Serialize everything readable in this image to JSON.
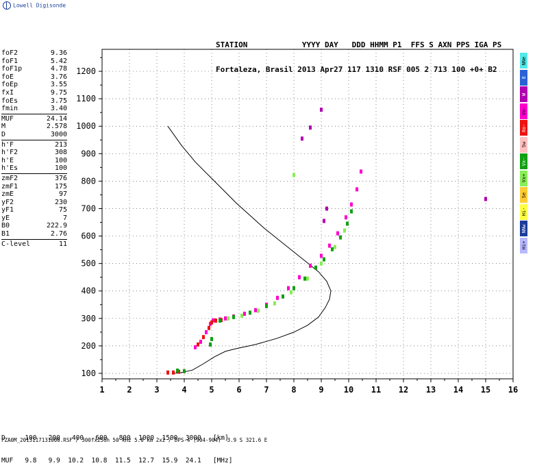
{
  "logo": {
    "text": "Lowell Digisonde"
  },
  "header": {
    "line1": "STATION            YYYY DAY   DDD HHMM P1  FFS S AXN PPS IGA PS",
    "line2": "Fortaleza, Brasil 2013 Apr27 117 1310 RSF 005 2 713 100 +0+ B2"
  },
  "parameters": [
    [
      {
        "name": "foF2",
        "value": "9.36"
      },
      {
        "name": "foF1",
        "value": "5.42"
      },
      {
        "name": "foF1p",
        "value": "4.78"
      },
      {
        "name": "foE",
        "value": "3.76"
      },
      {
        "name": "foEp",
        "value": "3.55"
      },
      {
        "name": "fxI",
        "value": "9.75"
      },
      {
        "name": "foEs",
        "value": "3.75"
      },
      {
        "name": "fmin",
        "value": "3.40"
      }
    ],
    [
      {
        "name": "MUF",
        "value": "24.14"
      },
      {
        "name": "M",
        "value": "2.578"
      },
      {
        "name": "D",
        "value": "3000"
      }
    ],
    [
      {
        "name": "h'F",
        "value": "213"
      },
      {
        "name": "h'F2",
        "value": "308"
      },
      {
        "name": "h'E",
        "value": "100"
      },
      {
        "name": "h'Es",
        "value": "100"
      }
    ],
    [
      {
        "name": "zmF2",
        "value": "376"
      },
      {
        "name": "zmF1",
        "value": "175"
      },
      {
        "name": "zmE",
        "value": "97"
      },
      {
        "name": "yF2",
        "value": "230"
      },
      {
        "name": "yF1",
        "value": "75"
      },
      {
        "name": "yE",
        "value": "7"
      },
      {
        "name": "B0",
        "value": "222.9"
      },
      {
        "name": "B1",
        "value": "2.76"
      }
    ],
    [
      {
        "name": "C-level",
        "value": "11"
      }
    ]
  ],
  "legend": [
    {
      "label": "NNe",
      "color": "#55e8e8"
    },
    {
      "label": "E",
      "color": "#2a62d6"
    },
    {
      "label": "W",
      "color": "#b000b0"
    },
    {
      "label": "Vo-",
      "color": "#ff00cc"
    },
    {
      "label": "Xo-",
      "color": "#ee1111"
    },
    {
      "label": "Sw",
      "color": "#ffc0c0"
    },
    {
      "label": "Vx-",
      "color": "#11a011"
    },
    {
      "label": "Vx+",
      "color": "#88ee55"
    },
    {
      "label": "Se",
      "color": "#ffcc33"
    },
    {
      "label": "Hi-",
      "color": "#ffff44"
    },
    {
      "label": "NNw",
      "color": "#1a3c9a"
    },
    {
      "label": "Hi+",
      "color": "#b8b8ff"
    }
  ],
  "chart_data": {
    "type": "scatter",
    "xlabel": "",
    "ylabel": "",
    "xlim": [
      1,
      16
    ],
    "ylim": [
      80,
      1280
    ],
    "xticks": [
      1,
      2,
      3,
      4,
      5,
      6,
      7,
      8,
      9,
      10,
      11,
      12,
      13,
      14,
      15,
      16
    ],
    "yticks": [
      100,
      200,
      300,
      400,
      500,
      600,
      700,
      800,
      900,
      1000,
      1100,
      1200
    ],
    "grid": true,
    "series": [
      {
        "color": "#ff00cc",
        "points": [
          [
            4.4,
            195
          ],
          [
            4.6,
            215
          ],
          [
            4.8,
            250
          ],
          [
            4.95,
            280
          ],
          [
            5.05,
            293
          ],
          [
            5.3,
            296
          ],
          [
            5.5,
            300
          ],
          [
            5.8,
            307
          ],
          [
            6.2,
            317
          ],
          [
            6.6,
            330
          ],
          [
            7.0,
            350
          ],
          [
            7.4,
            375
          ],
          [
            7.8,
            410
          ],
          [
            8.2,
            450
          ],
          [
            8.6,
            492
          ],
          [
            9.0,
            528
          ],
          [
            9.3,
            565
          ],
          [
            9.6,
            610
          ],
          [
            9.9,
            668
          ],
          [
            10.1,
            715
          ],
          [
            10.3,
            770
          ],
          [
            10.45,
            835
          ]
        ]
      },
      {
        "color": "#ee1111",
        "points": [
          [
            4.5,
            205
          ],
          [
            4.7,
            232
          ],
          [
            4.9,
            265
          ],
          [
            5.0,
            285
          ],
          [
            5.15,
            292
          ],
          [
            5.35,
            294
          ],
          [
            3.4,
            103
          ],
          [
            3.6,
            103
          ],
          [
            3.8,
            106
          ]
        ]
      },
      {
        "color": "#11a011",
        "points": [
          [
            4.95,
            205
          ],
          [
            5.0,
            225
          ],
          [
            5.3,
            292
          ],
          [
            5.8,
            305
          ],
          [
            6.4,
            321
          ],
          [
            7.0,
            345
          ],
          [
            7.6,
            380
          ],
          [
            8.0,
            410
          ],
          [
            8.4,
            445
          ],
          [
            8.8,
            485
          ],
          [
            9.1,
            515
          ],
          [
            9.4,
            552
          ],
          [
            9.7,
            595
          ],
          [
            9.95,
            645
          ],
          [
            10.1,
            690
          ],
          [
            4.0,
            108
          ],
          [
            3.75,
            110
          ]
        ]
      },
      {
        "color": "#88ee55",
        "points": [
          [
            5.6,
            300
          ],
          [
            6.1,
            310
          ],
          [
            6.7,
            328
          ],
          [
            7.3,
            355
          ],
          [
            7.9,
            395
          ],
          [
            8.5,
            445
          ],
          [
            9.0,
            500
          ],
          [
            9.5,
            560
          ],
          [
            9.85,
            620
          ],
          [
            8.0,
            822
          ]
        ]
      },
      {
        "color": "#b000b0",
        "points": [
          [
            8.3,
            955
          ],
          [
            8.6,
            995
          ],
          [
            9.0,
            1060
          ],
          [
            9.2,
            700
          ],
          [
            9.1,
            655
          ],
          [
            15.0,
            735
          ]
        ]
      }
    ],
    "profile": [
      [
        3.4,
        1000
      ],
      [
        3.9,
        930
      ],
      [
        4.4,
        870
      ],
      [
        4.9,
        820
      ],
      [
        5.4,
        770
      ],
      [
        5.9,
        720
      ],
      [
        6.4,
        675
      ],
      [
        6.9,
        630
      ],
      [
        7.4,
        590
      ],
      [
        7.9,
        550
      ],
      [
        8.4,
        510
      ],
      [
        8.9,
        470
      ],
      [
        9.2,
        435
      ],
      [
        9.35,
        400
      ],
      [
        9.3,
        370
      ],
      [
        9.15,
        340
      ],
      [
        8.9,
        305
      ],
      [
        8.5,
        275
      ],
      [
        8.0,
        250
      ],
      [
        7.4,
        228
      ],
      [
        6.6,
        205
      ],
      [
        5.9,
        190
      ],
      [
        5.5,
        180
      ],
      [
        5.1,
        160
      ],
      [
        4.7,
        135
      ],
      [
        4.3,
        112
      ],
      [
        3.9,
        103
      ],
      [
        3.6,
        100
      ]
    ]
  },
  "footer": {
    "line1": "D     100   200   400   600   800  1000  1500  3000   [km]",
    "line2": "MUF   9.8   9.9  10.2  10.8  11.5  12.7  15.9  24.1   [MHz]",
    "file": "FZA0M_2013117131000.RSF / 300fx256h 50 kHz 5.0 km 2x2 / DPS-4 (904-904)  3.9 S 321.6 E"
  }
}
